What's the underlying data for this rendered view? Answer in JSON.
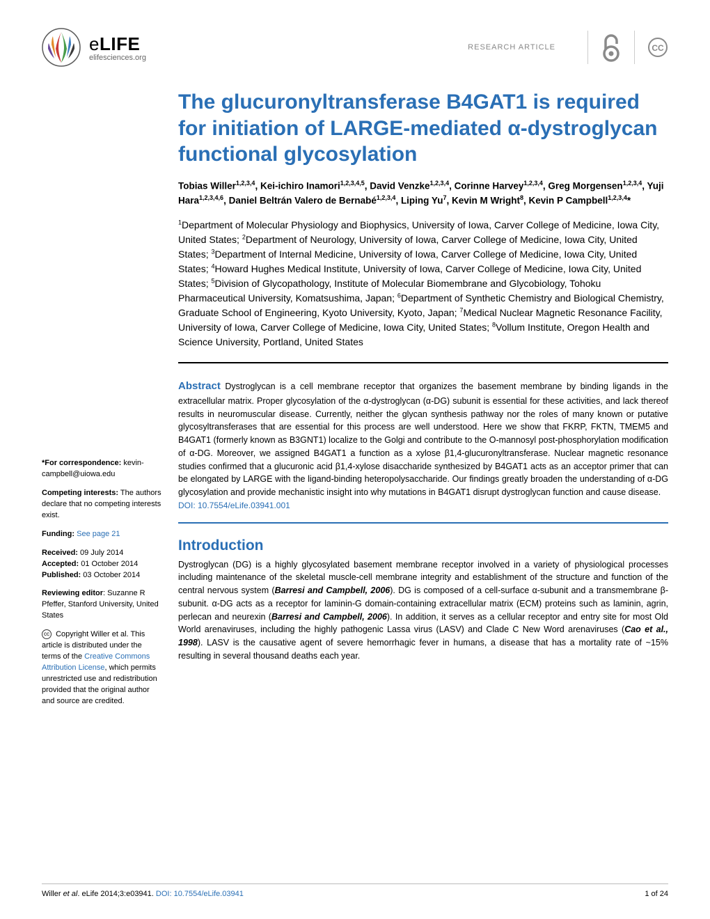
{
  "header": {
    "brand_e": "e",
    "brand_life": "LIFE",
    "brand_sub": "elifesciences.org",
    "research_label": "RESEARCH ARTICLE"
  },
  "logo": {
    "colors": [
      "#c93a3a",
      "#e38b2b",
      "#4a9c4a",
      "#3f7ebf",
      "#6b4a9c",
      "#3a3a3a"
    ]
  },
  "title": "The glucuronyltransferase B4GAT1 is required for initiation of LARGE-mediated α-dystroglycan functional glycosylation",
  "authors_html": "Tobias Willer<sup>1,2,3,4</sup>, Kei-ichiro Inamori<sup>1,2,3,4,5</sup>, David Venzke<sup>1,2,3,4</sup>, Corinne Harvey<sup>1,2,3,4</sup>, Greg Morgensen<sup>1,2,3,4</sup>, Yuji Hara<sup>1,2,3,4,6</sup>, Daniel Beltrán Valero de Bernabé<sup>1,2,3,4</sup>, Liping Yu<sup>7</sup>, Kevin M Wright<sup>8</sup>, Kevin P Campbell<sup>1,2,3,4</sup>*",
  "affiliations_html": "<sup>1</sup>Department of Molecular Physiology and Biophysics, University of Iowa, Carver College of Medicine, Iowa City, United States; <sup>2</sup>Department of Neurology, University of Iowa, Carver College of Medicine, Iowa City, United States; <sup>3</sup>Department of Internal Medicine, University of Iowa, Carver College of Medicine, Iowa City, United States; <sup>4</sup>Howard Hughes Medical Institute, University of Iowa, Carver College of Medicine, Iowa City, United States; <sup>5</sup>Division of Glycopathology, Institute of Molecular Biomembrane and Glycobiology, Tohoku Pharmaceutical University, Komatsushima, Japan; <sup>6</sup>Department of Synthetic Chemistry and Biological Chemistry, Graduate School of Engineering, Kyoto University, Kyoto, Japan; <sup>7</sup>Medical Nuclear Magnetic Resonance Facility, University of Iowa, Carver College of Medicine, Iowa City, United States; <sup>8</sup>Vollum Institute, Oregon Health and Science University, Portland, United States",
  "abstract": {
    "label": "Abstract",
    "body": "Dystroglycan is a cell membrane receptor that organizes the basement membrane by binding ligands in the extracellular matrix. Proper glycosylation of the α-dystroglycan (α-DG) subunit is essential for these activities, and lack thereof results in neuromuscular disease. Currently, neither the glycan synthesis pathway nor the roles of many known or putative glycosyltransferases that are essential for this process are well understood. Here we show that FKRP, FKTN, TMEM5 and B4GAT1 (formerly known as B3GNT1) localize to the Golgi and contribute to the O-mannosyl post-phosphorylation modification of α-DG. Moreover, we assigned B4GAT1 a function as a xylose β1,4-glucuronyltransferase. Nuclear magnetic resonance studies confirmed that a glucuronic acid β1,4-xylose disaccharide synthesized by B4GAT1 acts as an acceptor primer that can be elongated by LARGE with the ligand-binding heteropolysaccharide. Our findings greatly broaden the understanding of α-DG glycosylation and provide mechanistic insight into why mutations in B4GAT1 disrupt dystroglycan function and cause disease.",
    "doi": "DOI: 10.7554/eLife.03941.001"
  },
  "sidebar": {
    "correspondence_label": "*For correspondence:",
    "correspondence_email": "kevin-campbell@uiowa.edu",
    "competing_label": "Competing interests:",
    "competing_text": "The authors declare that no competing interests exist.",
    "funding_label": "Funding:",
    "funding_link": "See page 21",
    "received_label": "Received:",
    "received_date": "09 July 2014",
    "accepted_label": "Accepted:",
    "accepted_date": "01 October 2014",
    "published_label": "Published:",
    "published_date": "03 October 2014",
    "reviewing_label": "Reviewing editor",
    "reviewing_text": ": Suzanne R Pfeffer, Stanford University, United States",
    "copyright_text_1": "Copyright Willer et al. This article is distributed under the terms of the ",
    "copyright_link": "Creative Commons Attribution License",
    "copyright_text_2": ", which permits unrestricted use and redistribution provided that the original author and source are credited."
  },
  "intro": {
    "heading": "Introduction",
    "body_html": "Dystroglycan (DG) is a highly glycosylated basement membrane receptor involved in a variety of physiological processes including maintenance of the skeletal muscle-cell membrane integrity and establishment of the structure and function of the central nervous system (<span class=\"ref-inline\">Barresi and Campbell, 2006</span>). DG is composed of a cell-surface α-subunit and a transmembrane β-subunit. α-DG acts as a receptor for laminin-G domain-containing extracellular matrix (ECM) proteins such as laminin, agrin, perlecan and neurexin (<span class=\"ref-inline\">Barresi and Campbell, 2006</span>). In addition, it serves as a cellular receptor and entry site for most Old World arenaviruses, including the highly pathogenic Lassa virus (LASV) and Clade C New Word arenaviruses (<span class=\"ref-inline\">Cao et al., 1998</span>). LASV is the causative agent of severe hemorrhagic fever in humans, a disease that has a mortality rate of ~15% resulting in several thousand deaths each year."
  },
  "footer": {
    "citation_prefix": "Willer ",
    "citation_etal": "et al",
    "citation_rest": ". eLife 2014;3:e03941. ",
    "doi": "DOI: 10.7554/eLife.03941",
    "page": "1 of 24"
  },
  "colors": {
    "brand_blue": "#2a6fb5",
    "text": "#000000",
    "muted": "#888888"
  }
}
